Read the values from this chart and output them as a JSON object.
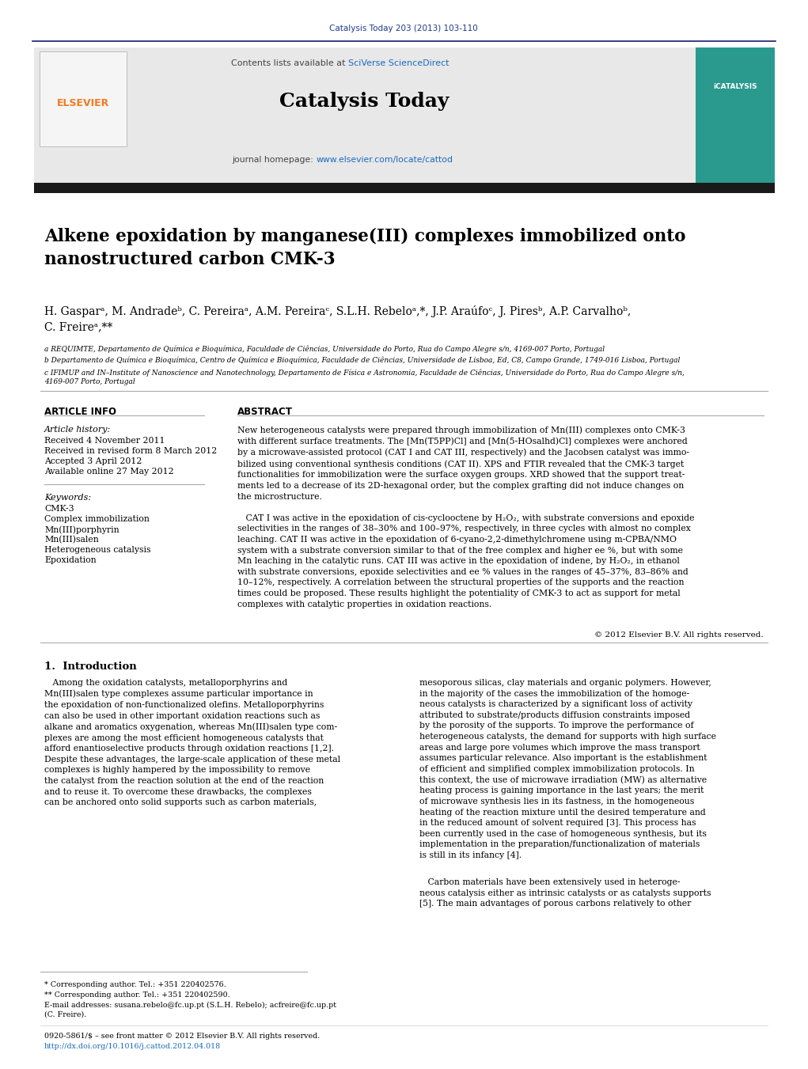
{
  "journal_ref": "Catalysis Today 203 (2013) 103-110",
  "journal_ref_color": "#1a3a8c",
  "header_bg_color": "#e8e8e8",
  "header_border_color": "#1a1a6e",
  "contents_text": "Contents lists available at ",
  "sciverse_text": "SciVerse ScienceDirect",
  "sciverse_color": "#1a6abf",
  "journal_name": "Catalysis Today",
  "journal_homepage_prefix": "journal homepage: ",
  "journal_homepage_url": "www.elsevier.com/locate/cattod",
  "journal_homepage_url_color": "#1a6abf",
  "elsevier_color": "#f47920",
  "dark_bar_color": "#1a1a1a",
  "title": "Alkene epoxidation by manganese(III) complexes immobilized onto\nnanostructured carbon CMK-3",
  "affil_a": "a REQUIMTE, Departamento de Química e Bioquímica, Faculdade de Ciências, Universidade do Porto, Rua do Campo Alegre s/n, 4169-007 Porto, Portugal",
  "affil_b": "b Departamento de Química e Bioquímica, Centro de Química e Bioquímica, Faculdade de Ciências, Universidade de Lisboa, Ed, C8, Campo Grande, 1749-016 Lisboa, Portugal",
  "affil_c": "c IFIMUP and IN–Institute of Nanoscience and Nanotechnology, Departamento de Física e Astronomia, Faculdade de Ciências, Universidade do Porto, Rua do Campo Alegre s/n,\n4169-007 Porto, Portugal",
  "article_info_header": "ARTICLE INFO",
  "abstract_header": "ABSTRACT",
  "article_history_label": "Article history:",
  "received1": "Received 4 November 2011",
  "received2": "Received in revised form 8 March 2012",
  "accepted": "Accepted 3 April 2012",
  "available": "Available online 27 May 2012",
  "keywords_label": "Keywords:",
  "keywords": [
    "CMK-3",
    "Complex immobilization",
    "Mn(III)porphyrin",
    "Mn(III)salen",
    "Heterogeneous catalysis",
    "Epoxidation"
  ],
  "abstract_text": "New heterogeneous catalysts were prepared through immobilization of Mn(III) complexes onto CMK-3\nwith different surface treatments. The [Mn(T5PP)Cl] and [Mn(5-HOsalhd)Cl] complexes were anchored\nby a microwave-assisted protocol (CAT I and CAT III, respectively) and the Jacobsen catalyst was immo-\nbilized using conventional synthesis conditions (CAT II). XPS and FTIR revealed that the CMK-3 target\nfunctionalities for immobilization were the surface oxygen groups. XRD showed that the support treat-\nments led to a decrease of its 2D-hexagonal order, but the complex grafting did not induce changes on\nthe microstructure.\n\n   CAT I was active in the epoxidation of cis-cyclooctene by H₂O₂, with substrate conversions and epoxide\nselectivities in the ranges of 38–30% and 100–97%, respectively, in three cycles with almost no complex\nleaching. CAT II was active in the epoxidation of 6-cyano-2,2-dimethylchromene using m-CPBA/NMO\nsystem with a substrate conversion similar to that of the free complex and higher ee %, but with some\nMn leaching in the catalytic runs. CAT III was active in the epoxidation of indene, by H₂O₂, in ethanol\nwith substrate conversions, epoxide selectivities and ee % values in the ranges of 45–37%, 83–86% and\n10–12%, respectively. A correlation between the structural properties of the supports and the reaction\ntimes could be proposed. These results highlight the potentiality of CMK-3 to act as support for metal\ncomplexes with catalytic properties in oxidation reactions.",
  "copyright": "© 2012 Elsevier B.V. All rights reserved.",
  "intro_header": "1.  Introduction",
  "intro_left": "   Among the oxidation catalysts, metalloporphyrins and\nMn(III)salen type complexes assume particular importance in\nthe epoxidation of non-functionalized olefins. Metalloporphyrins\ncan also be used in other important oxidation reactions such as\nalkane and aromatics oxygenation, whereas Mn(III)salen type com-\nplexes are among the most efficient homogeneous catalysts that\nafford enantioselective products through oxidation reactions [1,2].\nDespite these advantages, the large-scale application of these metal\ncomplexes is highly hampered by the impossibility to remove\nthe catalyst from the reaction solution at the end of the reaction\nand to reuse it. To overcome these drawbacks, the complexes\ncan be anchored onto solid supports such as carbon materials,",
  "intro_right": "mesoporous silicas, clay materials and organic polymers. However,\nin the majority of the cases the immobilization of the homoge-\nneous catalysts is characterized by a significant loss of activity\nattributed to substrate/products diffusion constraints imposed\nby the porosity of the supports. To improve the performance of\nheterogeneous catalysts, the demand for supports with high surface\nareas and large pore volumes which improve the mass transport\nassumes particular relevance. Also important is the establishment\nof efficient and simplified complex immobilization protocols. In\nthis context, the use of microwave irradiation (MW) as alternative\nheating process is gaining importance in the last years; the merit\nof microwave synthesis lies in its fastness, in the homogeneous\nheating of the reaction mixture until the desired temperature and\nin the reduced amount of solvent required [3]. This process has\nbeen currently used in the case of homogeneous synthesis, but its\nimplementation in the preparation/functionalization of materials\nis still in its infancy [4].",
  "intro_right_2": "   Carbon materials have been extensively used in heteroge-\nneous catalysis either as intrinsic catalysts or as catalysts supports\n[5]. The main advantages of porous carbons relatively to other",
  "footnote_star": "* Corresponding author. Tel.: +351 220402576.",
  "footnote_dstar": "** Corresponding author. Tel.: +351 220402590.",
  "footnote_email": "E-mail addresses: susana.rebelo@fc.up.pt (S.L.H. Rebelo); acfreire@fc.up.pt\n(C. Freire).",
  "footnote_issn": "0920-5861/$ – see front matter © 2012 Elsevier B.V. All rights reserved.",
  "footnote_doi": "http://dx.doi.org/10.1016/j.cattod.2012.04.018"
}
